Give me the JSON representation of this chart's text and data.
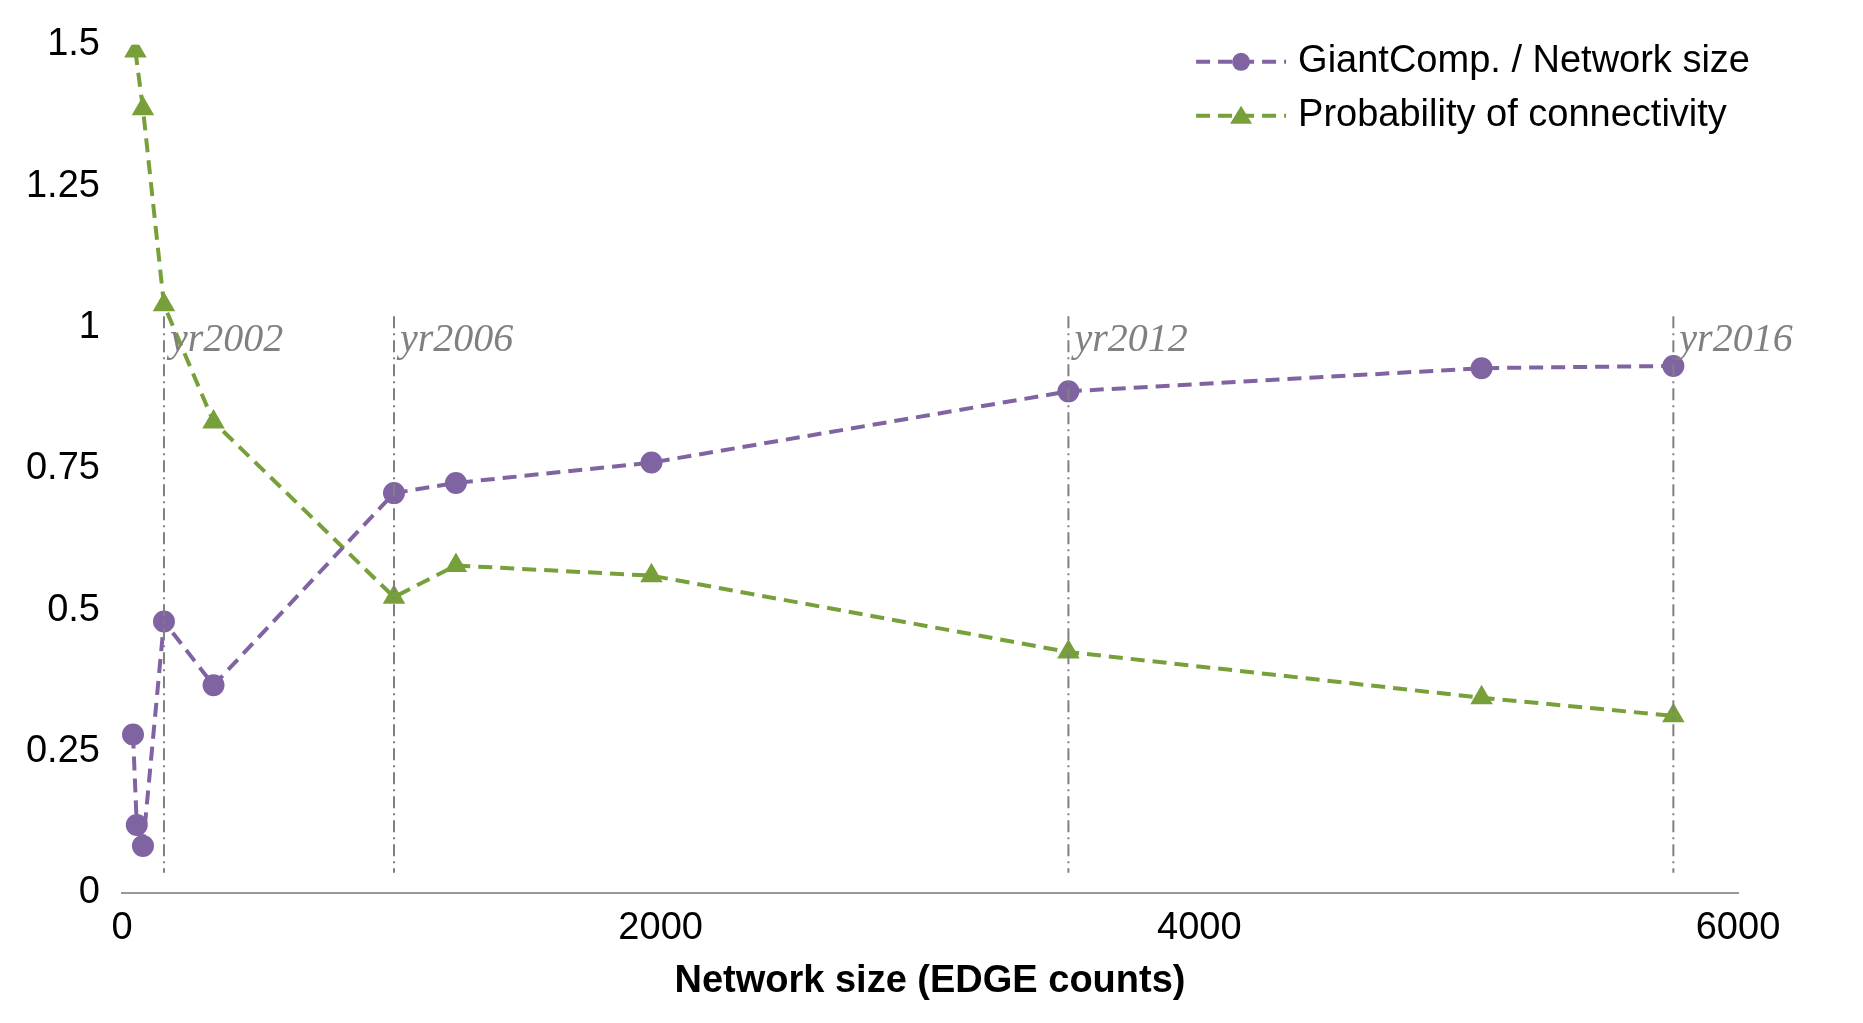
{
  "chart_data": {
    "type": "line",
    "xlabel": "Network size (EDGE counts)",
    "xlim": [
      0,
      6000
    ],
    "xticks": [
      0,
      2000,
      4000,
      6000
    ],
    "ylim": [
      0,
      1.5
    ],
    "yticks": [
      0,
      0.25,
      0.5,
      0.75,
      1,
      1.25,
      1.5
    ],
    "grid": false,
    "legend": "top right",
    "line_style": "dashed",
    "series": [
      {
        "name": "GiantComp. / Network size",
        "color": "#8064a2",
        "marker": "circle",
        "x": [
          41,
          55,
          78,
          156,
          340,
          1010,
          1240,
          1966,
          3514,
          5048,
          5760
        ],
        "values": [
          0.28,
          0.12,
          0.083,
          0.48,
          0.367,
          0.707,
          0.725,
          0.761,
          0.887,
          0.928,
          0.932
        ]
      },
      {
        "name": "Probability of connectivity",
        "color": "#77a03a",
        "marker": "triangle",
        "x": [
          50,
          78,
          156,
          340,
          1010,
          1240,
          1966,
          3514,
          5048,
          5760
        ],
        "values": [
          1.489,
          1.387,
          1.04,
          0.833,
          0.523,
          0.579,
          0.561,
          0.426,
          0.345,
          0.313
        ]
      }
    ],
    "ref_lines": [
      {
        "axis": "x",
        "value": 156,
        "label": "yr2002",
        "color": "#808080",
        "line_style": "dashdot"
      },
      {
        "axis": "x",
        "value": 1010,
        "label": "yr2006",
        "color": "#808080",
        "line_style": "dashdot"
      },
      {
        "axis": "x",
        "value": 3514,
        "label": "yr2012",
        "color": "#808080",
        "line_style": "dashdot"
      },
      {
        "axis": "x",
        "value": 5760,
        "label": "yr2016",
        "color": "#808080",
        "line_style": "dashdot"
      }
    ]
  }
}
